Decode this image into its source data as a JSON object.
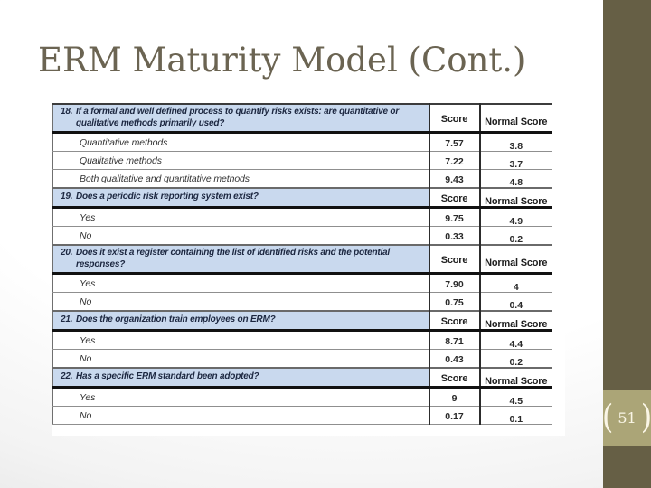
{
  "slide": {
    "title": "ERM Maturity Model (Cont.)",
    "page_number": "51",
    "badge_left_bracket": "(",
    "badge_right_bracket": ")"
  },
  "colors": {
    "title_text": "#6b6452",
    "sidebar": "#665f45",
    "badge_background": "#aba577",
    "table_header_background": "#c9d9ee",
    "table_header_text": "#1c2740"
  },
  "table": {
    "sections": [
      {
        "num": "18.",
        "question": "If a formal and well defined process to quantify risks exists: are quantitative or qualitative methods primarily used?",
        "score_label": "Score",
        "normal_label": "Normal Score",
        "rows": [
          {
            "label": "Quantitative methods",
            "score": "7.57",
            "normal": "3.8"
          },
          {
            "label": "Qualitative methods",
            "score": "7.22",
            "normal": "3.7"
          },
          {
            "label": "Both qualitative and quantitative methods",
            "score": "9.43",
            "normal": "4.8"
          }
        ]
      },
      {
        "num": "19.",
        "question": "Does a periodic risk reporting system exist?",
        "score_label": "Score",
        "normal_label": "Normal Score",
        "rows": [
          {
            "label": "Yes",
            "score": "9.75",
            "normal": "4.9"
          },
          {
            "label": "No",
            "score": "0.33",
            "normal": "0.2"
          }
        ]
      },
      {
        "num": "20.",
        "question": "Does it exist a register containing the list of identified risks and the potential responses?",
        "score_label": "Score",
        "normal_label": "Normal Score",
        "rows": [
          {
            "label": "Yes",
            "score": "7.90",
            "normal": "4"
          },
          {
            "label": "No",
            "score": "0.75",
            "normal": "0.4"
          }
        ]
      },
      {
        "num": "21.",
        "question": "Does the organization train employees on ERM?",
        "score_label": "Score",
        "normal_label": "Normal Score",
        "rows": [
          {
            "label": "Yes",
            "score": "8.71",
            "normal": "4.4"
          },
          {
            "label": "No",
            "score": "0.43",
            "normal": "0.2"
          }
        ]
      },
      {
        "num": "22.",
        "question": "Has a specific ERM standard been adopted?",
        "score_label": "Score",
        "normal_label": "Normal Score",
        "rows": [
          {
            "label": "Yes",
            "score": "9",
            "normal": "4.5"
          },
          {
            "label": "No",
            "score": "0.17",
            "normal": "0.1"
          }
        ]
      }
    ]
  }
}
